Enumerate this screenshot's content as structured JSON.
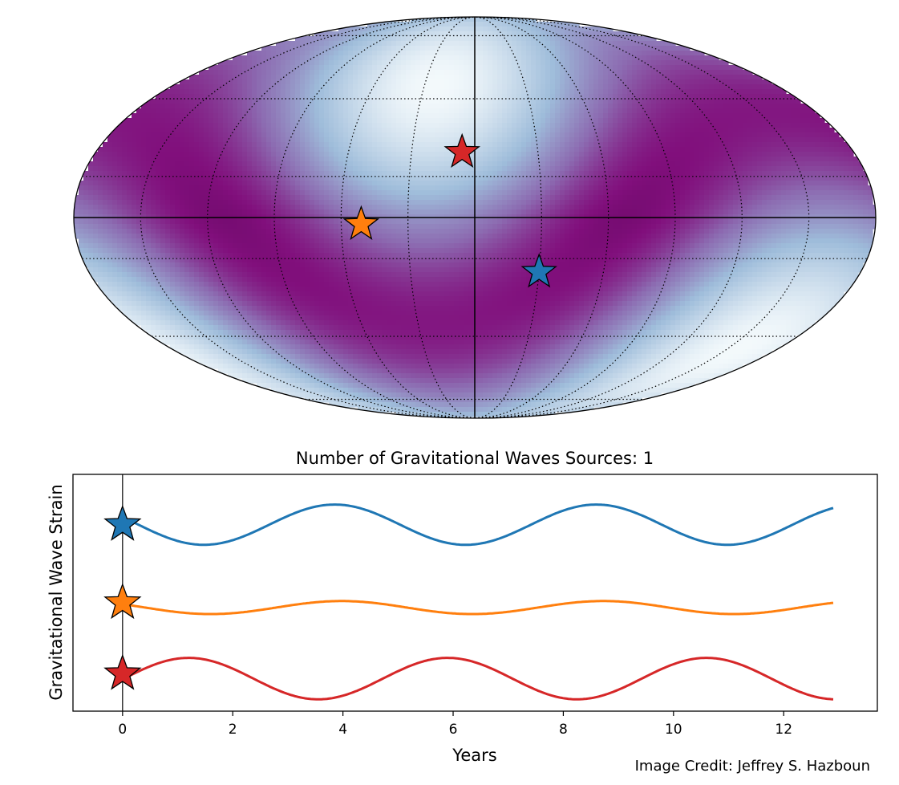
{
  "chart_data": [
    {
      "type": "heatmap",
      "projection": "mollweide",
      "description_colormap": "BuPu",
      "colors": {
        "low": "#f7fcfd",
        "mid": "#9ebcda",
        "high": "#810f7c",
        "max": "#4d004b"
      },
      "grid": true,
      "markers": [
        {
          "name": "source-blue",
          "color": "#1f77b4",
          "lon_deg": 30,
          "lat_deg": -20
        },
        {
          "name": "source-orange",
          "color": "#ff7f0e",
          "lon_deg": -51,
          "lat_deg": -2.5
        },
        {
          "name": "source-red",
          "color": "#d62728",
          "lon_deg": -6,
          "lat_deg": 24
        }
      ]
    },
    {
      "type": "line",
      "title": "Number of Gravitational Waves Sources: 1",
      "xlabel": "Years",
      "ylabel": "Gravitational Wave Strain",
      "xlim": [
        -0.9,
        13.7
      ],
      "ylim": [
        -3.15,
        0.85
      ],
      "xticks": [
        0,
        2,
        4,
        6,
        8,
        10,
        12
      ],
      "x_end": 12.9,
      "grid": false,
      "vline_x": 0,
      "series": [
        {
          "color": "#1f77b4",
          "offset": 0,
          "amplitude": 0.34,
          "period": 4.75,
          "phase_year": 1.475,
          "star_y": 0
        },
        {
          "color": "#ff7f0e",
          "offset": -1.4,
          "amplitude": 0.11,
          "period": 4.75,
          "phase_year": 1.6,
          "star_y": -1.32
        },
        {
          "color": "#d62728",
          "offset": -2.6,
          "amplitude": 0.35,
          "period": 4.7,
          "phase_year": 3.55,
          "star_y": -2.52
        }
      ]
    }
  ],
  "credit": "Image Credit: Jeffrey S. Hazboun"
}
